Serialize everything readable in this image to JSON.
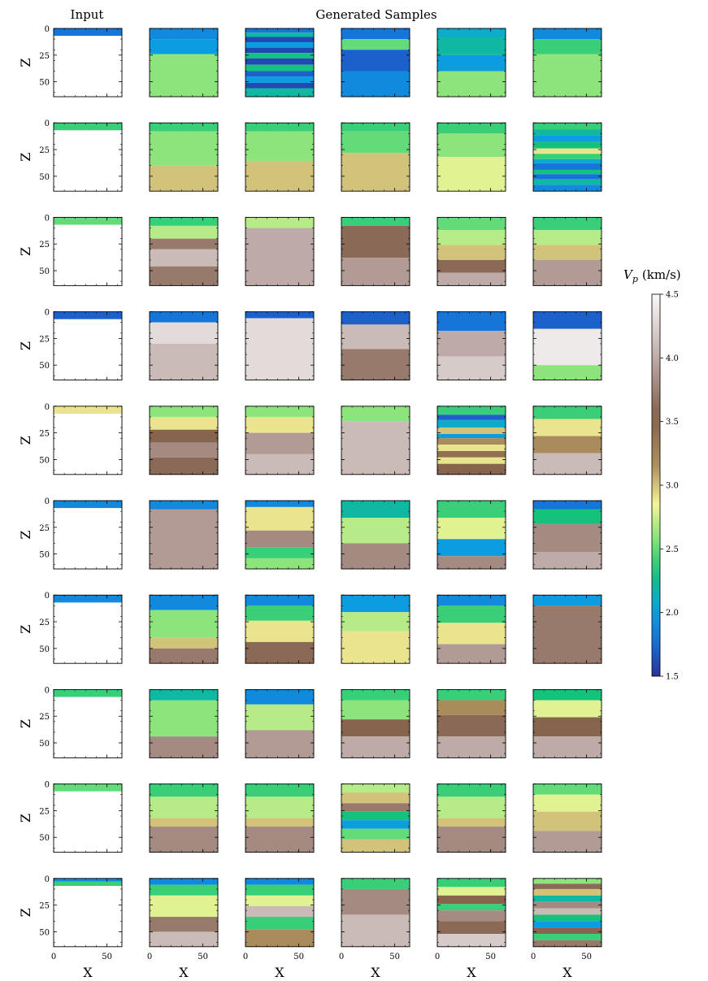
{
  "chart_data": {
    "type": "heatmap",
    "column_titles": [
      "Input",
      "Generated Samples"
    ],
    "xlabel": "X",
    "ylabel": "Z",
    "x_ticks": [
      0,
      50
    ],
    "z_ticks": [
      0,
      25,
      50
    ],
    "xlim": [
      0,
      64
    ],
    "zlim": [
      0,
      64
    ],
    "colorbar": {
      "label_symbol": "V",
      "label_subscript": "p",
      "label_units": "(km/s)",
      "min": 1.5,
      "max": 4.5,
      "ticks": [
        "4.5",
        "4.0",
        "3.5",
        "3.0",
        "2.5",
        "2.0",
        "1.5"
      ],
      "colormap": "terrain"
    },
    "rows": [
      {
        "input": [
          {
            "to": 7,
            "v": 1.8
          }
        ],
        "samples": [
          [
            {
              "to": 10,
              "v": 1.9
            },
            {
              "to": 24,
              "v": 2.0
            },
            {
              "to": 64,
              "v": 2.6
            }
          ],
          [
            {
              "to": 4,
              "v": 1.8
            },
            {
              "to": 8,
              "v": 2.2
            },
            {
              "to": 13,
              "v": 1.6
            },
            {
              "to": 18,
              "v": 2.0
            },
            {
              "to": 23,
              "v": 1.6
            },
            {
              "to": 28,
              "v": 2.3
            },
            {
              "to": 34,
              "v": 1.6
            },
            {
              "to": 40,
              "v": 2.3
            },
            {
              "to": 45,
              "v": 1.7
            },
            {
              "to": 51,
              "v": 2.0
            },
            {
              "to": 56,
              "v": 1.6
            },
            {
              "to": 64,
              "v": 2.2
            }
          ],
          [
            {
              "to": 10,
              "v": 1.8
            },
            {
              "to": 20,
              "v": 2.5
            },
            {
              "to": 40,
              "v": 1.7
            },
            {
              "to": 64,
              "v": 1.9
            }
          ],
          [
            {
              "to": 8,
              "v": 2.1
            },
            {
              "to": 25,
              "v": 2.2
            },
            {
              "to": 40,
              "v": 2.0
            },
            {
              "to": 64,
              "v": 2.6
            }
          ],
          [
            {
              "to": 10,
              "v": 1.9
            },
            {
              "to": 24,
              "v": 2.4
            },
            {
              "to": 64,
              "v": 2.6
            }
          ]
        ]
      },
      {
        "input": [
          {
            "to": 7,
            "v": 2.4
          }
        ],
        "samples": [
          [
            {
              "to": 8,
              "v": 2.4
            },
            {
              "to": 40,
              "v": 2.6
            },
            {
              "to": 64,
              "v": 3.0
            }
          ],
          [
            {
              "to": 8,
              "v": 2.4
            },
            {
              "to": 36,
              "v": 2.6
            },
            {
              "to": 64,
              "v": 3.0
            }
          ],
          [
            {
              "to": 8,
              "v": 2.4
            },
            {
              "to": 28,
              "v": 2.5
            },
            {
              "to": 64,
              "v": 3.0
            }
          ],
          [
            {
              "to": 10,
              "v": 2.4
            },
            {
              "to": 32,
              "v": 2.6
            },
            {
              "to": 64,
              "v": 2.8
            }
          ],
          [
            {
              "to": 6,
              "v": 2.4
            },
            {
              "to": 12,
              "v": 2.2
            },
            {
              "to": 18,
              "v": 2.0
            },
            {
              "to": 24,
              "v": 2.3
            },
            {
              "to": 29,
              "v": 2.9
            },
            {
              "to": 34,
              "v": 2.4
            },
            {
              "to": 38,
              "v": 2.1
            },
            {
              "to": 44,
              "v": 1.8
            },
            {
              "to": 48,
              "v": 2.3
            },
            {
              "to": 53,
              "v": 1.8
            },
            {
              "to": 58,
              "v": 2.2
            },
            {
              "to": 64,
              "v": 1.9
            }
          ]
        ]
      },
      {
        "input": [
          {
            "to": 7,
            "v": 2.5
          }
        ],
        "samples": [
          [
            {
              "to": 8,
              "v": 2.4
            },
            {
              "to": 20,
              "v": 2.7
            },
            {
              "to": 30,
              "v": 3.7
            },
            {
              "to": 46,
              "v": 4.1
            },
            {
              "to": 64,
              "v": 3.7
            }
          ],
          [
            {
              "to": 10,
              "v": 2.7
            },
            {
              "to": 64,
              "v": 4.0
            }
          ],
          [
            {
              "to": 8,
              "v": 2.4
            },
            {
              "to": 38,
              "v": 3.6
            },
            {
              "to": 64,
              "v": 3.9
            }
          ],
          [
            {
              "to": 12,
              "v": 2.5
            },
            {
              "to": 26,
              "v": 2.7
            },
            {
              "to": 40,
              "v": 3.0
            },
            {
              "to": 52,
              "v": 3.6
            },
            {
              "to": 64,
              "v": 4.0
            }
          ],
          [
            {
              "to": 12,
              "v": 2.4
            },
            {
              "to": 26,
              "v": 2.7
            },
            {
              "to": 40,
              "v": 3.0
            },
            {
              "to": 64,
              "v": 3.9
            }
          ]
        ]
      },
      {
        "input": [
          {
            "to": 7,
            "v": 1.7
          }
        ],
        "samples": [
          [
            {
              "to": 10,
              "v": 1.8
            },
            {
              "to": 30,
              "v": 4.3
            },
            {
              "to": 64,
              "v": 4.1
            }
          ],
          [
            {
              "to": 6,
              "v": 1.7
            },
            {
              "to": 64,
              "v": 4.3
            }
          ],
          [
            {
              "to": 12,
              "v": 1.7
            },
            {
              "to": 35,
              "v": 4.1
            },
            {
              "to": 64,
              "v": 3.7
            }
          ],
          [
            {
              "to": 18,
              "v": 1.8
            },
            {
              "to": 42,
              "v": 4.0
            },
            {
              "to": 64,
              "v": 4.2
            }
          ],
          [
            {
              "to": 16,
              "v": 1.7
            },
            {
              "to": 50,
              "v": 4.4
            },
            {
              "to": 64,
              "v": 2.6
            }
          ]
        ]
      },
      {
        "input": [
          {
            "to": 7,
            "v": 2.9
          }
        ],
        "samples": [
          [
            {
              "to": 10,
              "v": 2.6
            },
            {
              "to": 22,
              "v": 2.9
            },
            {
              "to": 34,
              "v": 3.5
            },
            {
              "to": 48,
              "v": 3.8
            },
            {
              "to": 64,
              "v": 3.6
            }
          ],
          [
            {
              "to": 10,
              "v": 2.6
            },
            {
              "to": 25,
              "v": 2.9
            },
            {
              "to": 45,
              "v": 3.9
            },
            {
              "to": 64,
              "v": 4.1
            }
          ],
          [
            {
              "to": 14,
              "v": 2.6
            },
            {
              "to": 64,
              "v": 4.1
            }
          ],
          [
            {
              "to": 8,
              "v": 2.4
            },
            {
              "to": 13,
              "v": 1.7
            },
            {
              "to": 20,
              "v": 2.1
            },
            {
              "to": 26,
              "v": 3.0
            },
            {
              "to": 30,
              "v": 2.0
            },
            {
              "to": 36,
              "v": 3.2
            },
            {
              "to": 42,
              "v": 2.9
            },
            {
              "to": 48,
              "v": 3.4
            },
            {
              "to": 54,
              "v": 2.9
            },
            {
              "to": 64,
              "v": 3.5
            }
          ],
          [
            {
              "to": 12,
              "v": 2.4
            },
            {
              "to": 28,
              "v": 2.9
            },
            {
              "to": 44,
              "v": 3.2
            },
            {
              "to": 64,
              "v": 4.1
            }
          ]
        ]
      },
      {
        "input": [
          {
            "to": 7,
            "v": 1.9
          }
        ],
        "samples": [
          [
            {
              "to": 8,
              "v": 1.9
            },
            {
              "to": 64,
              "v": 3.9
            }
          ],
          [
            {
              "to": 6,
              "v": 1.9
            },
            {
              "to": 28,
              "v": 2.9
            },
            {
              "to": 44,
              "v": 3.8
            },
            {
              "to": 54,
              "v": 2.4
            },
            {
              "to": 64,
              "v": 2.6
            }
          ],
          [
            {
              "to": 16,
              "v": 2.2
            },
            {
              "to": 40,
              "v": 2.7
            },
            {
              "to": 64,
              "v": 3.8
            }
          ],
          [
            {
              "to": 16,
              "v": 2.4
            },
            {
              "to": 36,
              "v": 2.8
            },
            {
              "to": 52,
              "v": 2.0
            },
            {
              "to": 64,
              "v": 3.8
            }
          ],
          [
            {
              "to": 8,
              "v": 1.8
            },
            {
              "to": 22,
              "v": 2.3
            },
            {
              "to": 48,
              "v": 3.8
            },
            {
              "to": 64,
              "v": 4.0
            }
          ]
        ]
      },
      {
        "input": [
          {
            "to": 7,
            "v": 1.9
          }
        ],
        "samples": [
          [
            {
              "to": 14,
              "v": 1.9
            },
            {
              "to": 40,
              "v": 2.6
            },
            {
              "to": 50,
              "v": 3.0
            },
            {
              "to": 64,
              "v": 3.7
            }
          ],
          [
            {
              "to": 10,
              "v": 1.9
            },
            {
              "to": 24,
              "v": 2.4
            },
            {
              "to": 44,
              "v": 2.9
            },
            {
              "to": 64,
              "v": 3.6
            }
          ],
          [
            {
              "to": 16,
              "v": 2.0
            },
            {
              "to": 34,
              "v": 2.7
            },
            {
              "to": 64,
              "v": 2.9
            }
          ],
          [
            {
              "to": 10,
              "v": 1.9
            },
            {
              "to": 26,
              "v": 2.4
            },
            {
              "to": 46,
              "v": 2.9
            },
            {
              "to": 64,
              "v": 3.9
            }
          ],
          [
            {
              "to": 10,
              "v": 2.0
            },
            {
              "to": 64,
              "v": 3.7
            }
          ]
        ]
      },
      {
        "input": [
          {
            "to": 7,
            "v": 2.4
          }
        ],
        "samples": [
          [
            {
              "to": 10,
              "v": 2.2
            },
            {
              "to": 44,
              "v": 2.6
            },
            {
              "to": 64,
              "v": 3.8
            }
          ],
          [
            {
              "to": 14,
              "v": 1.9
            },
            {
              "to": 38,
              "v": 2.7
            },
            {
              "to": 64,
              "v": 3.9
            }
          ],
          [
            {
              "to": 10,
              "v": 2.4
            },
            {
              "to": 28,
              "v": 2.6
            },
            {
              "to": 44,
              "v": 3.5
            },
            {
              "to": 64,
              "v": 4.0
            }
          ],
          [
            {
              "to": 10,
              "v": 2.4
            },
            {
              "to": 24,
              "v": 3.2
            },
            {
              "to": 44,
              "v": 3.6
            },
            {
              "to": 64,
              "v": 4.0
            }
          ],
          [
            {
              "to": 10,
              "v": 2.3
            },
            {
              "to": 26,
              "v": 2.8
            },
            {
              "to": 44,
              "v": 3.5
            },
            {
              "to": 64,
              "v": 4.0
            }
          ]
        ]
      },
      {
        "input": [
          {
            "to": 7,
            "v": 2.5
          }
        ],
        "samples": [
          [
            {
              "to": 12,
              "v": 2.4
            },
            {
              "to": 32,
              "v": 2.7
            },
            {
              "to": 40,
              "v": 3.0
            },
            {
              "to": 64,
              "v": 3.8
            }
          ],
          [
            {
              "to": 12,
              "v": 2.4
            },
            {
              "to": 32,
              "v": 2.7
            },
            {
              "to": 40,
              "v": 3.0
            },
            {
              "to": 64,
              "v": 3.8
            }
          ],
          [
            {
              "to": 8,
              "v": 2.7
            },
            {
              "to": 18,
              "v": 3.0
            },
            {
              "to": 26,
              "v": 3.7
            },
            {
              "to": 34,
              "v": 2.3
            },
            {
              "to": 42,
              "v": 2.0
            },
            {
              "to": 52,
              "v": 2.5
            },
            {
              "to": 64,
              "v": 3.0
            }
          ],
          [
            {
              "to": 12,
              "v": 2.4
            },
            {
              "to": 32,
              "v": 2.7
            },
            {
              "to": 40,
              "v": 3.0
            },
            {
              "to": 64,
              "v": 3.8
            }
          ],
          [
            {
              "to": 10,
              "v": 2.5
            },
            {
              "to": 26,
              "v": 2.8
            },
            {
              "to": 44,
              "v": 3.0
            },
            {
              "to": 64,
              "v": 3.9
            }
          ]
        ]
      },
      {
        "input": [
          {
            "to": 3,
            "v": 1.9
          },
          {
            "to": 7,
            "v": 2.4
          }
        ],
        "samples": [
          [
            {
              "to": 6,
              "v": 1.9
            },
            {
              "to": 16,
              "v": 2.4
            },
            {
              "to": 36,
              "v": 2.8
            },
            {
              "to": 50,
              "v": 3.7
            },
            {
              "to": 64,
              "v": 4.1
            }
          ],
          [
            {
              "to": 6,
              "v": 1.9
            },
            {
              "to": 16,
              "v": 2.4
            },
            {
              "to": 26,
              "v": 2.8
            },
            {
              "to": 36,
              "v": 4.1
            },
            {
              "to": 48,
              "v": 2.4
            },
            {
              "to": 64,
              "v": 3.2
            }
          ],
          [
            {
              "to": 10,
              "v": 2.4
            },
            {
              "to": 34,
              "v": 3.8
            },
            {
              "to": 64,
              "v": 4.1
            }
          ],
          [
            {
              "to": 8,
              "v": 2.4
            },
            {
              "to": 16,
              "v": 2.8
            },
            {
              "to": 24,
              "v": 3.5
            },
            {
              "to": 30,
              "v": 2.4
            },
            {
              "to": 40,
              "v": 3.8
            },
            {
              "to": 52,
              "v": 3.6
            },
            {
              "to": 64,
              "v": 4.2
            }
          ],
          [
            {
              "to": 5,
              "v": 2.6
            },
            {
              "to": 10,
              "v": 3.6
            },
            {
              "to": 16,
              "v": 3.0
            },
            {
              "to": 22,
              "v": 2.2
            },
            {
              "to": 28,
              "v": 3.8
            },
            {
              "to": 34,
              "v": 4.1
            },
            {
              "to": 40,
              "v": 2.3
            },
            {
              "to": 46,
              "v": 2.0
            },
            {
              "to": 52,
              "v": 3.5
            },
            {
              "to": 58,
              "v": 2.4
            },
            {
              "to": 64,
              "v": 3.7
            }
          ]
        ]
      }
    ]
  }
}
